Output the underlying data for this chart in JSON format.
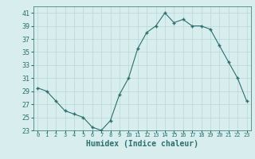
{
  "x": [
    0,
    1,
    2,
    3,
    4,
    5,
    6,
    7,
    8,
    9,
    10,
    11,
    12,
    13,
    14,
    15,
    16,
    17,
    18,
    19,
    20,
    21,
    22,
    23
  ],
  "y": [
    29.5,
    29.0,
    27.5,
    26.0,
    25.5,
    25.0,
    23.5,
    23.0,
    24.5,
    28.5,
    31.0,
    35.5,
    38.0,
    39.0,
    41.0,
    39.5,
    40.0,
    39.0,
    39.0,
    38.5,
    36.0,
    33.5,
    31.0,
    27.5
  ],
  "xlabel": "Humidex (Indice chaleur)",
  "ylim": [
    23,
    42
  ],
  "xlim": [
    -0.5,
    23.5
  ],
  "yticks": [
    23,
    25,
    27,
    29,
    31,
    33,
    35,
    37,
    39,
    41
  ],
  "xtick_labels": [
    "0",
    "1",
    "2",
    "3",
    "4",
    "5",
    "6",
    "7",
    "8",
    "9",
    "10",
    "11",
    "12",
    "13",
    "14",
    "15",
    "16",
    "17",
    "18",
    "19",
    "20",
    "21",
    "22",
    "23"
  ],
  "line_color": "#2d6e6e",
  "marker_color": "#2d6e6e",
  "bg_color": "#d8eeee",
  "grid_color": "#b8d8d8"
}
